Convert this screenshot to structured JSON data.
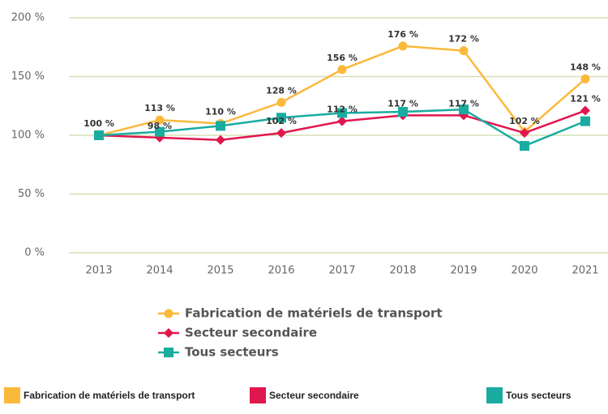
{
  "chart_data": {
    "type": "line",
    "categories": [
      "2013",
      "2014",
      "2015",
      "2016",
      "2017",
      "2018",
      "2019",
      "2020",
      "2021"
    ],
    "ylim": [
      0,
      200
    ],
    "yticks": [
      {
        "value": 0,
        "label": "0 %"
      },
      {
        "value": 50,
        "label": "50 %"
      },
      {
        "value": 100,
        "label": "100 %"
      },
      {
        "value": 150,
        "label": "150 %"
      },
      {
        "value": 200,
        "label": "200 %"
      }
    ],
    "grid": true,
    "series": [
      {
        "name": "Fabrication de matériels de transport",
        "color": "#fbb93b",
        "marker": "circle",
        "values": [
          100,
          113,
          110,
          128,
          156,
          176,
          172,
          103,
          148
        ],
        "value_labels": [
          "100 %",
          "113 %",
          "110 %",
          "128 %",
          "156 %",
          "176 %",
          "172 %",
          null,
          "148 %"
        ]
      },
      {
        "name": "Secteur secondaire",
        "color": "#e0174f",
        "marker": "diamond",
        "values": [
          100,
          98,
          96,
          102,
          112,
          117,
          117,
          102,
          121
        ],
        "value_labels": [
          null,
          "98 %",
          null,
          "102 %",
          "112 %",
          "117 %",
          "117 %",
          "102 %",
          "121 %"
        ]
      },
      {
        "name": "Tous secteurs",
        "color": "#1aaca0",
        "marker": "square",
        "values": [
          100,
          103,
          108,
          115,
          119,
          120,
          122,
          91,
          112
        ],
        "value_labels": [
          null,
          null,
          null,
          null,
          null,
          null,
          null,
          null,
          null
        ]
      }
    ]
  }
}
